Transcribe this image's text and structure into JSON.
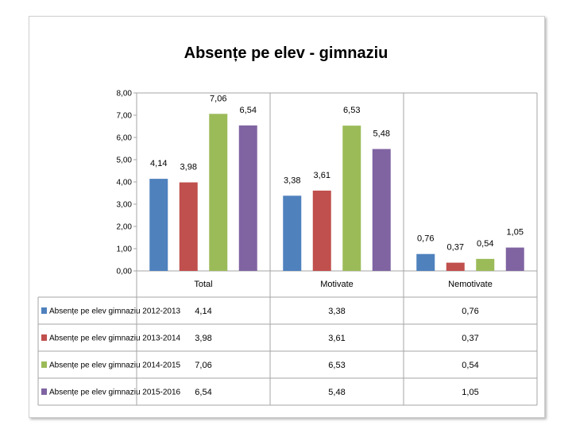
{
  "chart_data": {
    "type": "bar",
    "title": "Absențe pe elev - gimnaziu",
    "categories": [
      "Total",
      "Motivate",
      "Nemotivate"
    ],
    "ylim": [
      0,
      8
    ],
    "yticks": [
      "0,00",
      "1,00",
      "2,00",
      "3,00",
      "4,00",
      "5,00",
      "6,00",
      "7,00",
      "8,00"
    ],
    "grid": false,
    "legend": "table-bottom",
    "series": [
      {
        "name": "Absențe pe elev gimnaziu 2012-2013",
        "color": "#4f81bd",
        "values": [
          4.14,
          3.38,
          0.76
        ],
        "labels": [
          "4,14",
          "3,38",
          "0,76"
        ]
      },
      {
        "name": "Absențe pe elev gimnaziu 2013-2014",
        "color": "#c0504d",
        "values": [
          3.98,
          3.61,
          0.37
        ],
        "labels": [
          "3,98",
          "3,61",
          "0,37"
        ]
      },
      {
        "name": "Absențe pe elev gimnaziu 2014-2015",
        "color": "#9bbb59",
        "values": [
          7.06,
          6.53,
          0.54
        ],
        "labels": [
          "7,06",
          "6,53",
          "0,54"
        ]
      },
      {
        "name": "Absențe pe elev gimnaziu 2015-2016",
        "color": "#8064a2",
        "values": [
          6.54,
          5.48,
          1.05
        ],
        "labels": [
          "6,54",
          "5,48",
          "1,05"
        ]
      }
    ]
  }
}
